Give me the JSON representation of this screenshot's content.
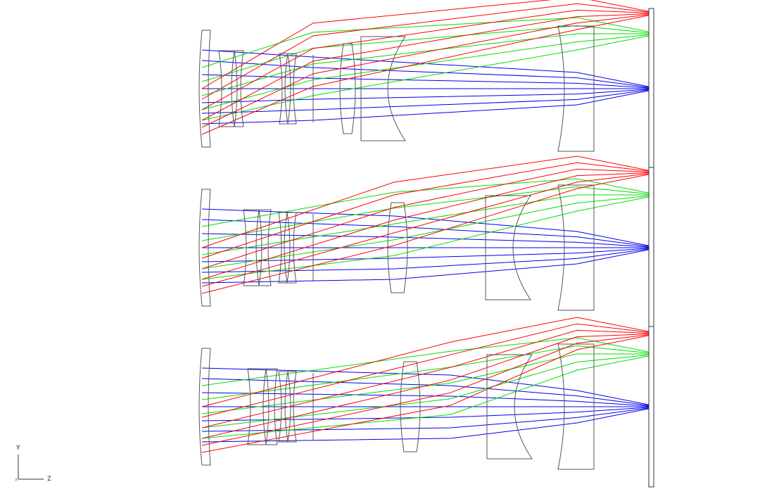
{
  "axis_labels": {
    "y": "Y",
    "z": "Z",
    "x": "X"
  },
  "colors": {
    "field_red": "#ff0000",
    "field_green": "#00dd00",
    "field_blue": "#0000ee",
    "lens_outline": "#555555",
    "background": "#ffffff"
  },
  "configurations": [
    {
      "id": "config-1"
    },
    {
      "id": "config-2"
    },
    {
      "id": "config-3"
    }
  ]
}
